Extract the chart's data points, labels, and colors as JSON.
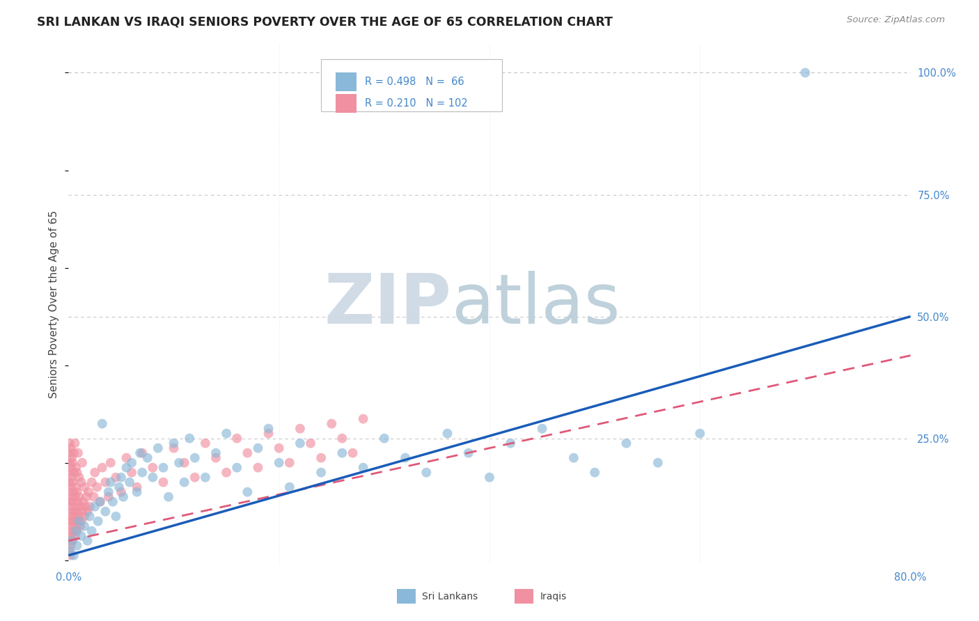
{
  "title": "SRI LANKAN VS IRAQI SENIORS POVERTY OVER THE AGE OF 65 CORRELATION CHART",
  "source": "Source: ZipAtlas.com",
  "ylabel": "Seniors Poverty Over the Age of 65",
  "sri_lankan_color": "#8ab8d8",
  "iraqi_color": "#f090a0",
  "regression_sri_color": "#1a5cb8",
  "regression_iraqi_color": "#e05878",
  "watermark_zip_color": "#c8d8e8",
  "watermark_atlas_color": "#b8ccd8",
  "background_color": "#ffffff",
  "title_color": "#222222",
  "title_fontsize": 12.5,
  "source_color": "#888888",
  "axis_tick_color": "#4488cc",
  "grid_color": "#c8c8c8",
  "xlim": [
    0.0,
    0.8
  ],
  "ylim": [
    -0.01,
    1.06
  ],
  "yticks": [
    0.25,
    0.5,
    0.75,
    1.0
  ],
  "xtick_positions": [
    0.0,
    0.2,
    0.4,
    0.6,
    0.8
  ],
  "regression_sri_start_x": 0.0,
  "regression_sri_end_x": 0.8,
  "regression_sri_start_y": 0.01,
  "regression_sri_end_y": 0.5,
  "regression_iraqi_start_x": 0.0,
  "regression_iraqi_end_x": 0.8,
  "regression_iraqi_start_y": 0.04,
  "regression_iraqi_end_y": 0.42,
  "sri_lankan_points": [
    [
      0.001,
      0.02
    ],
    [
      0.003,
      0.04
    ],
    [
      0.005,
      0.01
    ],
    [
      0.007,
      0.06
    ],
    [
      0.008,
      0.03
    ],
    [
      0.01,
      0.08
    ],
    [
      0.012,
      0.05
    ],
    [
      0.015,
      0.07
    ],
    [
      0.018,
      0.04
    ],
    [
      0.02,
      0.09
    ],
    [
      0.022,
      0.06
    ],
    [
      0.025,
      0.11
    ],
    [
      0.028,
      0.08
    ],
    [
      0.03,
      0.12
    ],
    [
      0.032,
      0.28
    ],
    [
      0.035,
      0.1
    ],
    [
      0.038,
      0.14
    ],
    [
      0.04,
      0.16
    ],
    [
      0.042,
      0.12
    ],
    [
      0.045,
      0.09
    ],
    [
      0.048,
      0.15
    ],
    [
      0.05,
      0.17
    ],
    [
      0.052,
      0.13
    ],
    [
      0.055,
      0.19
    ],
    [
      0.058,
      0.16
    ],
    [
      0.06,
      0.2
    ],
    [
      0.065,
      0.14
    ],
    [
      0.068,
      0.22
    ],
    [
      0.07,
      0.18
    ],
    [
      0.075,
      0.21
    ],
    [
      0.08,
      0.17
    ],
    [
      0.085,
      0.23
    ],
    [
      0.09,
      0.19
    ],
    [
      0.095,
      0.13
    ],
    [
      0.1,
      0.24
    ],
    [
      0.105,
      0.2
    ],
    [
      0.11,
      0.16
    ],
    [
      0.115,
      0.25
    ],
    [
      0.12,
      0.21
    ],
    [
      0.13,
      0.17
    ],
    [
      0.14,
      0.22
    ],
    [
      0.15,
      0.26
    ],
    [
      0.16,
      0.19
    ],
    [
      0.17,
      0.14
    ],
    [
      0.18,
      0.23
    ],
    [
      0.19,
      0.27
    ],
    [
      0.2,
      0.2
    ],
    [
      0.21,
      0.15
    ],
    [
      0.22,
      0.24
    ],
    [
      0.24,
      0.18
    ],
    [
      0.26,
      0.22
    ],
    [
      0.28,
      0.19
    ],
    [
      0.3,
      0.25
    ],
    [
      0.32,
      0.21
    ],
    [
      0.34,
      0.18
    ],
    [
      0.36,
      0.26
    ],
    [
      0.38,
      0.22
    ],
    [
      0.4,
      0.17
    ],
    [
      0.42,
      0.24
    ],
    [
      0.45,
      0.27
    ],
    [
      0.48,
      0.21
    ],
    [
      0.5,
      0.18
    ],
    [
      0.53,
      0.24
    ],
    [
      0.56,
      0.2
    ],
    [
      0.6,
      0.26
    ],
    [
      0.7,
      1.0
    ]
  ],
  "iraqi_points": [
    [
      0.001,
      0.02
    ],
    [
      0.001,
      0.04
    ],
    [
      0.001,
      0.06
    ],
    [
      0.001,
      0.08
    ],
    [
      0.001,
      0.1
    ],
    [
      0.001,
      0.12
    ],
    [
      0.001,
      0.14
    ],
    [
      0.001,
      0.16
    ],
    [
      0.001,
      0.18
    ],
    [
      0.001,
      0.2
    ],
    [
      0.001,
      0.22
    ],
    [
      0.001,
      0.24
    ],
    [
      0.002,
      0.03
    ],
    [
      0.002,
      0.07
    ],
    [
      0.002,
      0.11
    ],
    [
      0.002,
      0.15
    ],
    [
      0.002,
      0.19
    ],
    [
      0.002,
      0.23
    ],
    [
      0.002,
      0.01
    ],
    [
      0.003,
      0.05
    ],
    [
      0.003,
      0.09
    ],
    [
      0.003,
      0.13
    ],
    [
      0.003,
      0.17
    ],
    [
      0.003,
      0.21
    ],
    [
      0.004,
      0.04
    ],
    [
      0.004,
      0.08
    ],
    [
      0.004,
      0.12
    ],
    [
      0.004,
      0.16
    ],
    [
      0.004,
      0.2
    ],
    [
      0.005,
      0.06
    ],
    [
      0.005,
      0.1
    ],
    [
      0.005,
      0.14
    ],
    [
      0.005,
      0.18
    ],
    [
      0.005,
      0.22
    ],
    [
      0.006,
      0.05
    ],
    [
      0.006,
      0.09
    ],
    [
      0.006,
      0.13
    ],
    [
      0.006,
      0.24
    ],
    [
      0.007,
      0.07
    ],
    [
      0.007,
      0.11
    ],
    [
      0.007,
      0.15
    ],
    [
      0.007,
      0.19
    ],
    [
      0.008,
      0.06
    ],
    [
      0.008,
      0.1
    ],
    [
      0.008,
      0.14
    ],
    [
      0.008,
      0.18
    ],
    [
      0.009,
      0.08
    ],
    [
      0.009,
      0.12
    ],
    [
      0.009,
      0.22
    ],
    [
      0.01,
      0.09
    ],
    [
      0.01,
      0.13
    ],
    [
      0.01,
      0.17
    ],
    [
      0.011,
      0.07
    ],
    [
      0.011,
      0.11
    ],
    [
      0.012,
      0.08
    ],
    [
      0.012,
      0.16
    ],
    [
      0.013,
      0.1
    ],
    [
      0.013,
      0.2
    ],
    [
      0.014,
      0.12
    ],
    [
      0.015,
      0.09
    ],
    [
      0.015,
      0.15
    ],
    [
      0.016,
      0.11
    ],
    [
      0.017,
      0.13
    ],
    [
      0.018,
      0.1
    ],
    [
      0.019,
      0.14
    ],
    [
      0.02,
      0.11
    ],
    [
      0.022,
      0.16
    ],
    [
      0.024,
      0.13
    ],
    [
      0.025,
      0.18
    ],
    [
      0.027,
      0.15
    ],
    [
      0.03,
      0.12
    ],
    [
      0.032,
      0.19
    ],
    [
      0.035,
      0.16
    ],
    [
      0.038,
      0.13
    ],
    [
      0.04,
      0.2
    ],
    [
      0.045,
      0.17
    ],
    [
      0.05,
      0.14
    ],
    [
      0.055,
      0.21
    ],
    [
      0.06,
      0.18
    ],
    [
      0.065,
      0.15
    ],
    [
      0.07,
      0.22
    ],
    [
      0.08,
      0.19
    ],
    [
      0.09,
      0.16
    ],
    [
      0.1,
      0.23
    ],
    [
      0.11,
      0.2
    ],
    [
      0.12,
      0.17
    ],
    [
      0.13,
      0.24
    ],
    [
      0.14,
      0.21
    ],
    [
      0.15,
      0.18
    ],
    [
      0.16,
      0.25
    ],
    [
      0.17,
      0.22
    ],
    [
      0.18,
      0.19
    ],
    [
      0.19,
      0.26
    ],
    [
      0.2,
      0.23
    ],
    [
      0.21,
      0.2
    ],
    [
      0.22,
      0.27
    ],
    [
      0.23,
      0.24
    ],
    [
      0.24,
      0.21
    ],
    [
      0.25,
      0.28
    ],
    [
      0.26,
      0.25
    ],
    [
      0.27,
      0.22
    ],
    [
      0.28,
      0.29
    ]
  ]
}
